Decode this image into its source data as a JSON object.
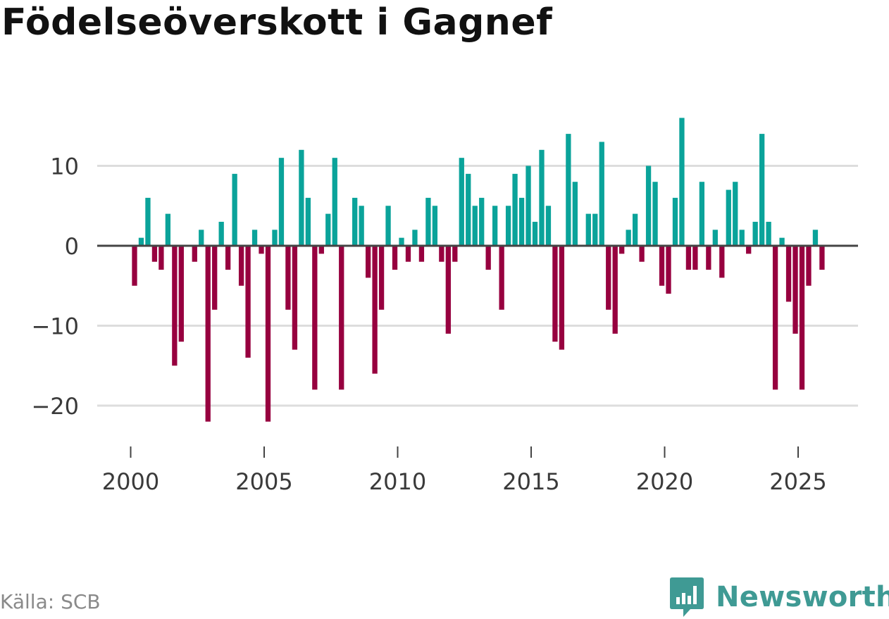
{
  "chart_data": {
    "type": "bar",
    "title": "Födelseöverskott i Gagnef",
    "xlabel": "",
    "ylabel": "",
    "ylim": [
      -25,
      17
    ],
    "xlim": [
      1999.5,
      2027.2
    ],
    "yticks": [
      -20,
      -10,
      0,
      10
    ],
    "ytick_labels": [
      "−20",
      "−10",
      "0",
      "10"
    ],
    "xticks": [
      2000,
      2005,
      2010,
      2015,
      2020,
      2025
    ],
    "xtick_labels": [
      "2000",
      "2005",
      "2010",
      "2015",
      "2020",
      "2025"
    ],
    "grid": true,
    "positive_color": "#0aa39a",
    "negative_color": "#97003f",
    "period": "quarterly",
    "start": "2000 Q1",
    "values": [
      -5,
      1,
      6,
      -2,
      -3,
      4,
      -15,
      -12,
      0,
      -2,
      2,
      -22,
      -8,
      3,
      -3,
      9,
      -5,
      -14,
      2,
      -1,
      -22,
      2,
      11,
      -8,
      -13,
      12,
      6,
      -18,
      -1,
      4,
      11,
      -18,
      0,
      6,
      5,
      -4,
      -16,
      -8,
      5,
      -3,
      1,
      -2,
      2,
      -2,
      6,
      5,
      -2,
      -11,
      -2,
      11,
      9,
      5,
      6,
      -3,
      5,
      -8,
      5,
      9,
      6,
      10,
      3,
      12,
      5,
      -12,
      -13,
      14,
      8,
      0,
      4,
      4,
      13,
      -8,
      -11,
      -1,
      2,
      4,
      -2,
      10,
      8,
      -5,
      -6,
      6,
      16,
      -3,
      -3,
      8,
      -3,
      2,
      -4,
      7,
      8,
      2,
      -1,
      3,
      14,
      3,
      -18,
      1,
      -7,
      -11,
      -18,
      -5,
      2,
      -3
    ]
  },
  "footer": {
    "source": "Källa: SCB",
    "brand": "Newsworthy"
  },
  "colors": {
    "brand": "#3f9a94",
    "grid": "#dddddd",
    "zero_line": "#444444"
  }
}
